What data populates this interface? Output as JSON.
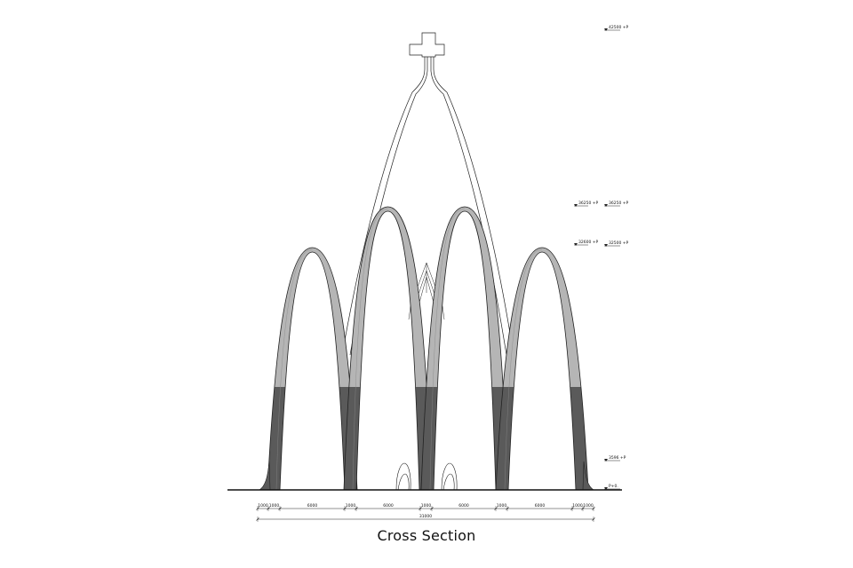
{
  "title": "Cross Section",
  "colors": {
    "line": "#222222",
    "arch_upper": "#b5b5b5",
    "arch_lower": "#5a5a5a",
    "ground": "#111111"
  },
  "icons": [
    "level-marker-icon",
    "cross-icon"
  ],
  "levels": {
    "left": [
      {
        "label": "36250 +P"
      },
      {
        "label": "32600 +P"
      }
    ],
    "right": [
      {
        "label": "42500 +P"
      },
      {
        "label": "36250 +P"
      },
      {
        "label": "32500 +P"
      },
      {
        "label": "3596 +P"
      },
      {
        "label": "P+0."
      }
    ]
  },
  "dimensions": {
    "segments": [
      "1000",
      "1000",
      "6000",
      "1000",
      "6000",
      "1000",
      "6000",
      "1000",
      "6000",
      "1000",
      "1000"
    ],
    "total": "31000"
  }
}
